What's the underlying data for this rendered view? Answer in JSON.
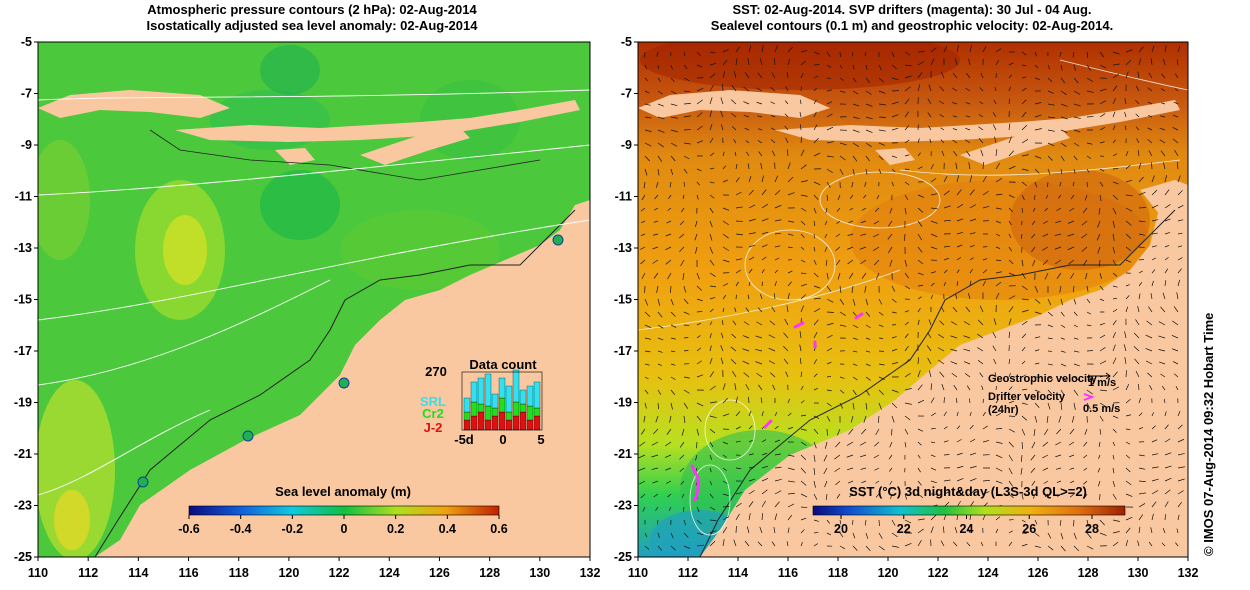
{
  "left_panel": {
    "title_line1": "Atmospheric pressure contours (2 hPa): 02-Aug-2014",
    "title_line2": "Isostatically adjusted sea level anomaly: 02-Aug-2014",
    "colorbar": {
      "label": "Sea level anomaly (m)",
      "ticks": [
        "-0.6",
        "-0.4",
        "-0.2",
        "0",
        "0.2",
        "0.4",
        "0.6"
      ]
    },
    "data_count": {
      "title": "Data count",
      "max_label": "270",
      "x_ticks": [
        "-5d",
        "0",
        "5"
      ],
      "legend": [
        {
          "label": "SRL",
          "color": "#33e0f0"
        },
        {
          "label": "Cr2",
          "color": "#22dd22"
        },
        {
          "label": "J-2",
          "color": "#dd1111"
        }
      ]
    }
  },
  "right_panel": {
    "title_line1": "SST: 02-Aug-2014. SVP drifters (magenta): 30 Jul - 04 Aug.",
    "title_line2": "Sealevel contours (0.1 m) and geostrophic velocity: 02-Aug-2014.",
    "colorbar": {
      "label": "SST (°C) 3d night&day (L3S-3d QL>=2)",
      "ticks": [
        "20",
        "22",
        "24",
        "26",
        "28"
      ]
    },
    "velocity_legend": {
      "geo_label": "Geostrophic velocity",
      "geo_scale": "1 m/s",
      "drifter_label_1": "Drifter velocity",
      "drifter_label_2": "(24hr)",
      "drifter_scale": "0.5 m/s"
    }
  },
  "axes": {
    "x_ticks": [
      "110",
      "112",
      "114",
      "116",
      "118",
      "120",
      "122",
      "124",
      "126",
      "128",
      "130",
      "132"
    ],
    "y_ticks": [
      "-5",
      "-7",
      "-9",
      "-11",
      "-13",
      "-15",
      "-17",
      "-19",
      "-21",
      "-23",
      "-25"
    ]
  },
  "credit": "© IMOS 07-Aug-2014 09:32 Hobart Time",
  "colors": {
    "land": "#f9c8a0",
    "drifter": "#ff33ff"
  }
}
